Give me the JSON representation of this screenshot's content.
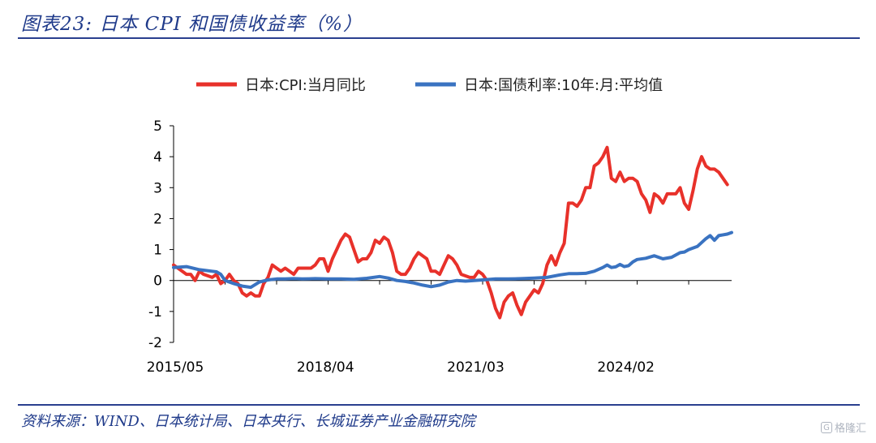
{
  "header": {
    "title": "图表23:  日本 CPI 和国债收益率（%）"
  },
  "footer": {
    "source": "资料来源：WIND、日本统计局、日本央行、长城证券产业金融研究院"
  },
  "watermark": {
    "text": "格隆汇",
    "icon": "gelonghui-logo-icon"
  },
  "colors": {
    "cpi": "#e8312a",
    "jgb": "#3a73c1",
    "accent": "#1f3a8a",
    "axis": "#000000"
  },
  "chart_data": {
    "type": "line",
    "x_tick_labels": [
      "2015/05",
      "2018/04",
      "2021/03",
      "2024/02"
    ],
    "y_ticks": [
      "5",
      "4",
      "3",
      "2",
      "1",
      "0",
      "-1",
      "-2"
    ],
    "ylim": [
      -2,
      5
    ],
    "x_months_start": "2015/05",
    "grid": false,
    "legend_position": "top",
    "series": [
      {
        "name": "日本:CPI:当月同比",
        "color": "#e8312a",
        "points": [
          [
            0,
            0.5
          ],
          [
            2,
            0.3
          ],
          [
            3,
            0.2
          ],
          [
            4,
            0.2
          ],
          [
            5,
            0.0
          ],
          [
            6,
            0.3
          ],
          [
            7,
            0.2
          ],
          [
            9,
            0.1
          ],
          [
            10,
            0.2
          ],
          [
            11,
            -0.1
          ],
          [
            12,
            0.0
          ],
          [
            13,
            0.2
          ],
          [
            14,
            0.0
          ],
          [
            15,
            -0.1
          ],
          [
            16,
            -0.4
          ],
          [
            17,
            -0.5
          ],
          [
            18,
            -0.4
          ],
          [
            19,
            -0.5
          ],
          [
            20,
            -0.5
          ],
          [
            21,
            -0.1
          ],
          [
            22,
            0.1
          ],
          [
            23,
            0.5
          ],
          [
            24,
            0.4
          ],
          [
            25,
            0.3
          ],
          [
            26,
            0.4
          ],
          [
            27,
            0.3
          ],
          [
            28,
            0.2
          ],
          [
            29,
            0.4
          ],
          [
            32,
            0.4
          ],
          [
            33,
            0.5
          ],
          [
            34,
            0.7
          ],
          [
            35,
            0.7
          ],
          [
            36,
            0.3
          ],
          [
            37,
            0.7
          ],
          [
            38,
            1.0
          ],
          [
            39,
            1.3
          ],
          [
            40,
            1.5
          ],
          [
            41,
            1.4
          ],
          [
            42,
            1.0
          ],
          [
            43,
            0.6
          ],
          [
            44,
            0.7
          ],
          [
            45,
            0.7
          ],
          [
            46,
            0.9
          ],
          [
            47,
            1.3
          ],
          [
            48,
            1.2
          ],
          [
            49,
            1.4
          ],
          [
            50,
            1.3
          ],
          [
            51,
            0.9
          ],
          [
            52,
            0.3
          ],
          [
            53,
            0.2
          ],
          [
            54,
            0.2
          ],
          [
            55,
            0.4
          ],
          [
            56,
            0.7
          ],
          [
            57,
            0.9
          ],
          [
            58,
            0.8
          ],
          [
            59,
            0.7
          ],
          [
            60,
            0.3
          ],
          [
            61,
            0.3
          ],
          [
            62,
            0.2
          ],
          [
            63,
            0.5
          ],
          [
            64,
            0.8
          ],
          [
            65,
            0.7
          ],
          [
            66,
            0.5
          ],
          [
            67,
            0.2
          ],
          [
            69,
            0.1
          ],
          [
            70,
            0.1
          ],
          [
            71,
            0.3
          ],
          [
            72,
            0.2
          ],
          [
            73,
            0.0
          ],
          [
            74,
            -0.4
          ],
          [
            75,
            -0.9
          ],
          [
            76,
            -1.2
          ],
          [
            77,
            -0.7
          ],
          [
            78,
            -0.5
          ],
          [
            79,
            -0.4
          ],
          [
            80,
            -0.8
          ],
          [
            81,
            -1.1
          ],
          [
            82,
            -0.7
          ],
          [
            83,
            -0.5
          ],
          [
            84,
            -0.3
          ],
          [
            85,
            -0.4
          ],
          [
            86,
            -0.1
          ],
          [
            87,
            0.5
          ],
          [
            88,
            0.8
          ],
          [
            89,
            0.5
          ],
          [
            90,
            0.9
          ],
          [
            91,
            1.2
          ],
          [
            92,
            2.5
          ],
          [
            93,
            2.5
          ],
          [
            94,
            2.4
          ],
          [
            95,
            2.6
          ],
          [
            96,
            3.0
          ],
          [
            97,
            3.0
          ],
          [
            98,
            3.7
          ],
          [
            99,
            3.8
          ],
          [
            100,
            4.0
          ],
          [
            101,
            4.3
          ],
          [
            102,
            3.3
          ],
          [
            103,
            3.2
          ],
          [
            104,
            3.5
          ],
          [
            105,
            3.2
          ],
          [
            106,
            3.3
          ],
          [
            107,
            3.3
          ],
          [
            108,
            3.2
          ],
          [
            109,
            2.8
          ],
          [
            110,
            2.6
          ],
          [
            111,
            2.2
          ],
          [
            112,
            2.8
          ],
          [
            113,
            2.7
          ],
          [
            114,
            2.5
          ],
          [
            115,
            2.8
          ],
          [
            116,
            2.8
          ],
          [
            117,
            2.8
          ],
          [
            118,
            3.0
          ],
          [
            119,
            2.5
          ],
          [
            120,
            2.3
          ],
          [
            121,
            2.9
          ],
          [
            122,
            3.6
          ],
          [
            123,
            4.0
          ],
          [
            124,
            3.7
          ],
          [
            125,
            3.6
          ],
          [
            126,
            3.6
          ],
          [
            127,
            3.5
          ],
          [
            128,
            3.3
          ],
          [
            129,
            3.1
          ]
        ]
      },
      {
        "name": "日本:国债利率:10年:月:平均值",
        "color": "#3a73c1",
        "points": [
          [
            0,
            0.42
          ],
          [
            3,
            0.45
          ],
          [
            6,
            0.35
          ],
          [
            9,
            0.3
          ],
          [
            10,
            0.28
          ],
          [
            11,
            0.2
          ],
          [
            12,
            0.0
          ],
          [
            14,
            -0.1
          ],
          [
            16,
            -0.18
          ],
          [
            18,
            -0.22
          ],
          [
            20,
            -0.05
          ],
          [
            22,
            0.02
          ],
          [
            24,
            0.05
          ],
          [
            26,
            0.05
          ],
          [
            28,
            0.06
          ],
          [
            30,
            0.05
          ],
          [
            33,
            0.06
          ],
          [
            36,
            0.05
          ],
          [
            39,
            0.05
          ],
          [
            42,
            0.04
          ],
          [
            45,
            0.07
          ],
          [
            48,
            0.13
          ],
          [
            50,
            0.08
          ],
          [
            52,
            0.0
          ],
          [
            54,
            -0.03
          ],
          [
            56,
            -0.08
          ],
          [
            58,
            -0.15
          ],
          [
            60,
            -0.2
          ],
          [
            62,
            -0.15
          ],
          [
            64,
            -0.05
          ],
          [
            66,
            0.0
          ],
          [
            68,
            -0.02
          ],
          [
            70,
            0.0
          ],
          [
            72,
            0.02
          ],
          [
            75,
            0.05
          ],
          [
            78,
            0.05
          ],
          [
            81,
            0.06
          ],
          [
            84,
            0.08
          ],
          [
            87,
            0.1
          ],
          [
            90,
            0.18
          ],
          [
            92,
            0.22
          ],
          [
            94,
            0.22
          ],
          [
            96,
            0.23
          ],
          [
            98,
            0.3
          ],
          [
            100,
            0.42
          ],
          [
            101,
            0.5
          ],
          [
            102,
            0.42
          ],
          [
            103,
            0.44
          ],
          [
            104,
            0.52
          ],
          [
            105,
            0.45
          ],
          [
            106,
            0.48
          ],
          [
            107,
            0.6
          ],
          [
            108,
            0.68
          ],
          [
            110,
            0.72
          ],
          [
            112,
            0.8
          ],
          [
            114,
            0.7
          ],
          [
            116,
            0.75
          ],
          [
            118,
            0.9
          ],
          [
            119,
            0.92
          ],
          [
            120,
            1.0
          ],
          [
            122,
            1.1
          ],
          [
            124,
            1.35
          ],
          [
            125,
            1.45
          ],
          [
            126,
            1.3
          ],
          [
            127,
            1.45
          ],
          [
            129,
            1.5
          ],
          [
            130,
            1.55
          ]
        ]
      }
    ]
  }
}
